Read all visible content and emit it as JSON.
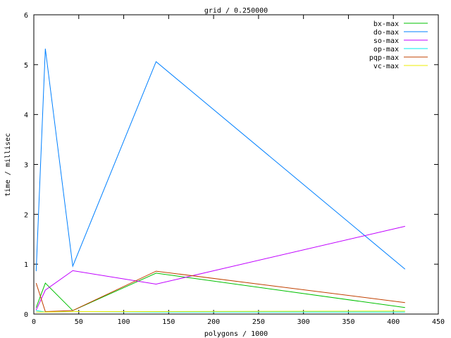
{
  "chart_data": {
    "type": "line",
    "title": "grid / 0.250000",
    "xlabel": "polygons / 1000",
    "ylabel": "time / millisec",
    "xlim": [
      0,
      450
    ],
    "ylim": [
      0,
      6
    ],
    "xticks": [
      0,
      50,
      100,
      150,
      200,
      250,
      300,
      350,
      400,
      450
    ],
    "yticks": [
      0,
      1,
      2,
      3,
      4,
      5,
      6
    ],
    "grid": false,
    "legend_placement": "top-right",
    "x": [
      2.6,
      12.8,
      43.3,
      136,
      413
    ],
    "series": [
      {
        "name": "bx-max",
        "color": "#00c000",
        "values": [
          0.13,
          0.62,
          0.07,
          0.82,
          0.13
        ]
      },
      {
        "name": "do-max",
        "color": "#0080ff",
        "values": [
          0.86,
          5.32,
          0.96,
          5.06,
          0.9
        ]
      },
      {
        "name": "so-max",
        "color": "#c000ff",
        "values": [
          0.08,
          0.48,
          0.87,
          0.6,
          1.76
        ]
      },
      {
        "name": "op-max",
        "color": "#00eeee",
        "values": [
          0.07,
          0.04,
          0.05,
          0.04,
          0.04
        ]
      },
      {
        "name": "pqp-max",
        "color": "#c04000",
        "values": [
          0.62,
          0.05,
          0.07,
          0.86,
          0.23
        ]
      },
      {
        "name": "vc-max",
        "color": "#eeee00",
        "values": [
          0.04,
          0.04,
          0.05,
          0.05,
          0.06
        ]
      }
    ]
  }
}
